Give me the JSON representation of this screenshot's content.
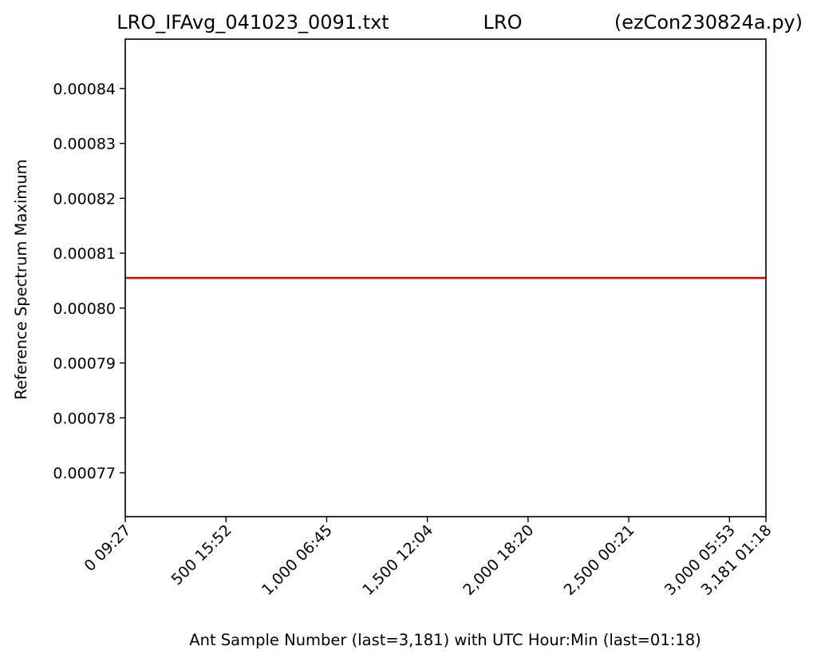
{
  "chart_data": {
    "type": "line",
    "title": {
      "left": "LRO_IFAvg_041023_0091.txt",
      "center": "LRO",
      "right": "(ezCon230824a.py)"
    },
    "xlabel": "Ant Sample Number (last=3,181) with UTC Hour:Min (last=01:18)",
    "ylabel": "Reference Spectrum Maximum",
    "xlim": [
      0,
      3181
    ],
    "ylim": [
      0.000762,
      0.000849
    ],
    "x_ticks": [
      {
        "value": 0,
        "label": "0  09:27"
      },
      {
        "value": 500,
        "label": "500  15:52"
      },
      {
        "value": 1000,
        "label": "1,000  06:45"
      },
      {
        "value": 1500,
        "label": "1,500  12:04"
      },
      {
        "value": 2000,
        "label": "2,000  18:20"
      },
      {
        "value": 2500,
        "label": "2,500  00:21"
      },
      {
        "value": 3000,
        "label": "3,000  05:53"
      },
      {
        "value": 3181,
        "label": "3,181  01:18"
      }
    ],
    "y_ticks": [
      {
        "value": 0.00077,
        "label": "0.00077"
      },
      {
        "value": 0.00078,
        "label": "0.00078"
      },
      {
        "value": 0.00079,
        "label": "0.00079"
      },
      {
        "value": 0.0008,
        "label": "0.00080"
      },
      {
        "value": 0.00081,
        "label": "0.00081"
      },
      {
        "value": 0.00082,
        "label": "0.00082"
      },
      {
        "value": 0.00083,
        "label": "0.00083"
      },
      {
        "value": 0.00084,
        "label": "0.00084"
      }
    ],
    "series": [
      {
        "color": "#e00000",
        "x": [
          0,
          3181
        ],
        "y": [
          0.0008055,
          0.0008055
        ]
      }
    ],
    "grid": false,
    "legend": "none"
  }
}
